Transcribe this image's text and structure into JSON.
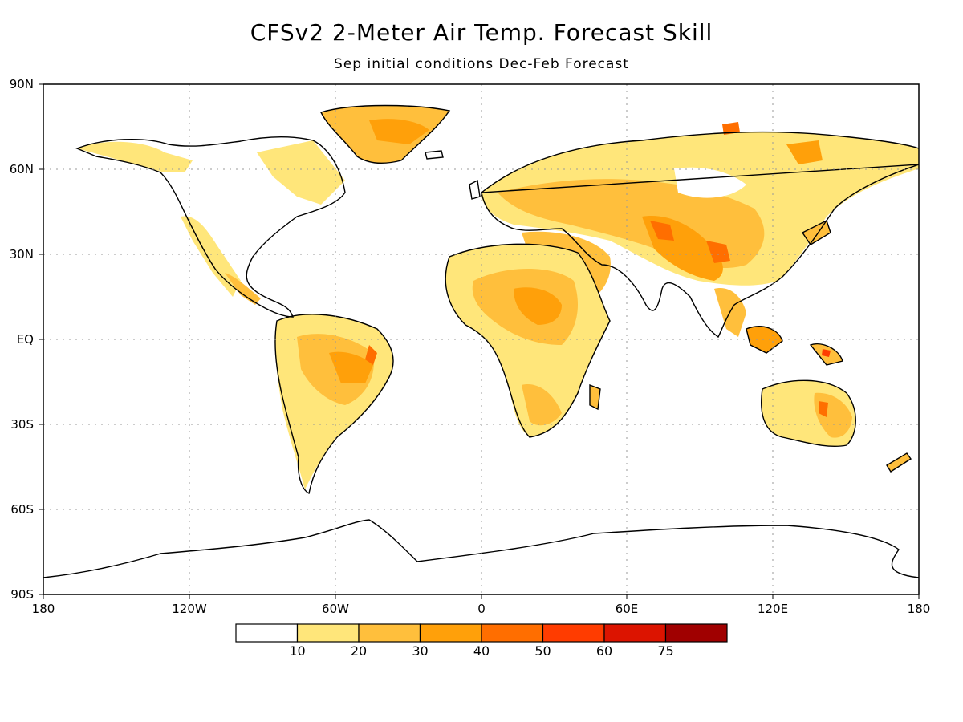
{
  "title": "CFSv2 2-Meter Air Temp. Forecast Skill",
  "subtitle": "Sep initial conditions   Dec-Feb Forecast",
  "lat_labels": [
    "90N",
    "60N",
    "30N",
    "EQ",
    "30S",
    "60S",
    "90S"
  ],
  "lon_labels": [
    "180",
    "120W",
    "60W",
    "0",
    "60E",
    "120E",
    "180"
  ],
  "legend": {
    "colors": [
      "#ffffff",
      "#ffe67a",
      "#ffbf3c",
      "#ffa00a",
      "#ff6e00",
      "#ff3c00",
      "#dc1400",
      "#a00000"
    ],
    "ticks": [
      "10",
      "20",
      "30",
      "40",
      "50",
      "60",
      "75"
    ]
  },
  "colors": {
    "land_outline": "#000000",
    "grid": "#999999"
  }
}
